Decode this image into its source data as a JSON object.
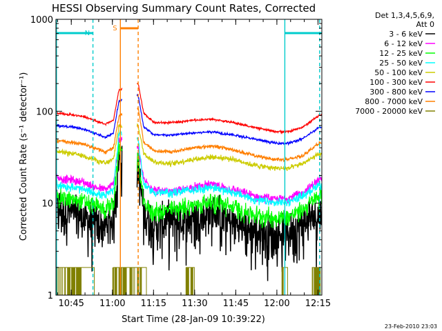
{
  "chart_data": {
    "type": "line",
    "title": "HESSI Observing Summary Count Rates, Corrected",
    "xlabel": "Start Time (28-Jan-09 10:39:22)",
    "ylabel": "Corrected Count Rate (s⁻¹ detector⁻¹)",
    "y_scale": "log",
    "ylim": [
      1,
      1000
    ],
    "xlim_minutes": [
      0,
      97
    ],
    "y_ticks": [
      "1",
      "10",
      "100",
      "1000"
    ],
    "x_ticks": [
      {
        "label": "10:45",
        "minute": 5.6
      },
      {
        "label": "11:00",
        "minute": 20.6
      },
      {
        "label": "11:15",
        "minute": 35.6
      },
      {
        "label": "11:30",
        "minute": 50.6
      },
      {
        "label": "11:45",
        "minute": 65.6
      },
      {
        "label": "12:00",
        "minute": 80.6
      },
      {
        "label": "12:15",
        "minute": 95.6
      }
    ],
    "legend_header": [
      "Det 1,3,4,5,6,9,",
      "Att 0"
    ],
    "legend_placement": "right",
    "footer": "23-Feb-2010 23:03",
    "annotations": [
      {
        "label": "N",
        "color": "#00cccc",
        "kind": "night",
        "bars": [
          [
            0,
            13.5
          ],
          [
            83.5,
            97
          ]
        ]
      },
      {
        "label": "S",
        "color": "#ff7f00",
        "kind": "saa",
        "bars": [
          [
            23.5,
            30
          ]
        ]
      }
    ],
    "vlines": [
      {
        "minute": 0.2,
        "color": "#00cccc",
        "style": "solid"
      },
      {
        "minute": 13.5,
        "color": "#00cccc",
        "style": "dashed"
      },
      {
        "minute": 83.5,
        "color": "#00cccc",
        "style": "solid"
      },
      {
        "minute": 96.2,
        "color": "#00cccc",
        "style": "dashed"
      },
      {
        "minute": 23.5,
        "color": "#ff7f00",
        "style": "solid"
      },
      {
        "minute": 30.0,
        "color": "#ff7f00",
        "style": "dashed"
      }
    ],
    "gap_minutes": [
      23.5,
      30.0
    ],
    "series": [
      {
        "name": "3 - 6 keV",
        "color": "#000000",
        "noise": 0.55,
        "points": [
          [
            0,
            9
          ],
          [
            5,
            8
          ],
          [
            10,
            7
          ],
          [
            14,
            6
          ],
          [
            18,
            5.5
          ],
          [
            21,
            7
          ],
          [
            23,
            30
          ],
          [
            30,
            25
          ],
          [
            32,
            8
          ],
          [
            36,
            6
          ],
          [
            42,
            6.5
          ],
          [
            50,
            7
          ],
          [
            57,
            8
          ],
          [
            65,
            6
          ],
          [
            72,
            5
          ],
          [
            80,
            4.5
          ],
          [
            85,
            5
          ],
          [
            90,
            6
          ],
          [
            96,
            8
          ]
        ]
      },
      {
        "name": "6 - 12 keV",
        "color": "#ff00ff",
        "noise": 0.1,
        "points": [
          [
            0,
            19
          ],
          [
            5,
            18
          ],
          [
            10,
            17
          ],
          [
            14,
            15
          ],
          [
            18,
            14
          ],
          [
            21,
            16
          ],
          [
            23,
            50
          ],
          [
            30,
            40
          ],
          [
            32,
            18
          ],
          [
            36,
            14
          ],
          [
            42,
            13
          ],
          [
            50,
            15
          ],
          [
            57,
            16
          ],
          [
            65,
            14
          ],
          [
            72,
            12
          ],
          [
            80,
            11
          ],
          [
            85,
            11.5
          ],
          [
            90,
            13
          ],
          [
            96,
            18
          ]
        ]
      },
      {
        "name": "12 - 25 keV",
        "color": "#00ff00",
        "noise": 0.22,
        "points": [
          [
            0,
            12
          ],
          [
            5,
            11
          ],
          [
            10,
            10.5
          ],
          [
            14,
            9.5
          ],
          [
            18,
            8.5
          ],
          [
            21,
            10
          ],
          [
            23,
            40
          ],
          [
            30,
            30
          ],
          [
            32,
            10
          ],
          [
            36,
            8
          ],
          [
            42,
            8.5
          ],
          [
            50,
            9.5
          ],
          [
            57,
            10.5
          ],
          [
            65,
            9
          ],
          [
            72,
            7.5
          ],
          [
            80,
            7
          ],
          [
            85,
            7.2
          ],
          [
            90,
            8.5
          ],
          [
            96,
            12
          ]
        ]
      },
      {
        "name": "25 - 50 keV",
        "color": "#00ffff",
        "noise": 0.1,
        "points": [
          [
            0,
            16
          ],
          [
            5,
            15
          ],
          [
            10,
            14
          ],
          [
            14,
            13
          ],
          [
            18,
            12
          ],
          [
            21,
            14
          ],
          [
            23,
            60
          ],
          [
            30,
            50
          ],
          [
            32,
            16
          ],
          [
            36,
            13
          ],
          [
            42,
            13
          ],
          [
            50,
            14
          ],
          [
            57,
            15
          ],
          [
            65,
            13
          ],
          [
            72,
            11
          ],
          [
            80,
            10
          ],
          [
            85,
            10.5
          ],
          [
            90,
            12
          ],
          [
            96,
            16
          ]
        ]
      },
      {
        "name": "50 - 100 keV",
        "color": "#cccc00",
        "noise": 0.06,
        "points": [
          [
            0,
            36
          ],
          [
            5,
            35
          ],
          [
            10,
            33
          ],
          [
            14,
            30
          ],
          [
            18,
            27
          ],
          [
            21,
            30
          ],
          [
            23,
            70
          ],
          [
            30,
            70
          ],
          [
            32,
            35
          ],
          [
            36,
            28
          ],
          [
            42,
            27
          ],
          [
            50,
            30
          ],
          [
            57,
            32
          ],
          [
            65,
            30
          ],
          [
            72,
            26
          ],
          [
            80,
            24
          ],
          [
            85,
            24
          ],
          [
            90,
            27
          ],
          [
            96,
            34
          ]
        ]
      },
      {
        "name": "100 - 300 keV",
        "color": "#ff0000",
        "noise": 0.025,
        "points": [
          [
            0,
            95
          ],
          [
            5,
            92
          ],
          [
            10,
            88
          ],
          [
            14,
            80
          ],
          [
            18,
            72
          ],
          [
            21,
            80
          ],
          [
            23,
            170
          ],
          [
            30,
            200
          ],
          [
            32,
            95
          ],
          [
            36,
            75
          ],
          [
            42,
            75
          ],
          [
            50,
            80
          ],
          [
            57,
            82
          ],
          [
            65,
            75
          ],
          [
            72,
            67
          ],
          [
            80,
            60
          ],
          [
            85,
            60
          ],
          [
            90,
            67
          ],
          [
            96,
            90
          ]
        ]
      },
      {
        "name": "300 - 800 keV",
        "color": "#0000ff",
        "noise": 0.03,
        "points": [
          [
            0,
            70
          ],
          [
            5,
            68
          ],
          [
            10,
            64
          ],
          [
            14,
            58
          ],
          [
            18,
            52
          ],
          [
            21,
            58
          ],
          [
            23,
            130
          ],
          [
            30,
            150
          ],
          [
            32,
            68
          ],
          [
            36,
            55
          ],
          [
            42,
            55
          ],
          [
            50,
            58
          ],
          [
            57,
            60
          ],
          [
            65,
            55
          ],
          [
            72,
            50
          ],
          [
            80,
            45
          ],
          [
            85,
            45
          ],
          [
            90,
            50
          ],
          [
            96,
            67
          ]
        ]
      },
      {
        "name": "800 - 7000 keV",
        "color": "#ff7f00",
        "noise": 0.04,
        "points": [
          [
            0,
            48
          ],
          [
            5,
            46
          ],
          [
            10,
            44
          ],
          [
            14,
            40
          ],
          [
            18,
            36
          ],
          [
            21,
            40
          ],
          [
            23,
            90
          ],
          [
            30,
            110
          ],
          [
            32,
            46
          ],
          [
            36,
            37
          ],
          [
            42,
            36
          ],
          [
            50,
            40
          ],
          [
            57,
            42
          ],
          [
            65,
            38
          ],
          [
            72,
            33
          ],
          [
            80,
            30
          ],
          [
            85,
            30
          ],
          [
            90,
            33
          ],
          [
            96,
            45
          ]
        ]
      },
      {
        "name": "7000 - 20000 keV",
        "color": "#808000",
        "noise": 0.0,
        "points": [
          [
            0,
            2
          ],
          [
            7,
            2
          ],
          [
            14,
            1
          ],
          [
            20,
            1
          ],
          [
            21,
            2
          ],
          [
            23,
            2
          ],
          [
            30,
            2
          ],
          [
            33,
            1
          ],
          [
            47,
            1
          ],
          [
            47.5,
            2
          ],
          [
            50,
            2
          ],
          [
            50.5,
            1
          ],
          [
            82,
            1
          ],
          [
            82.5,
            2
          ],
          [
            84,
            2
          ],
          [
            84.5,
            1
          ],
          [
            93,
            1
          ],
          [
            93.5,
            2
          ],
          [
            96.5,
            2
          ]
        ]
      }
    ]
  }
}
